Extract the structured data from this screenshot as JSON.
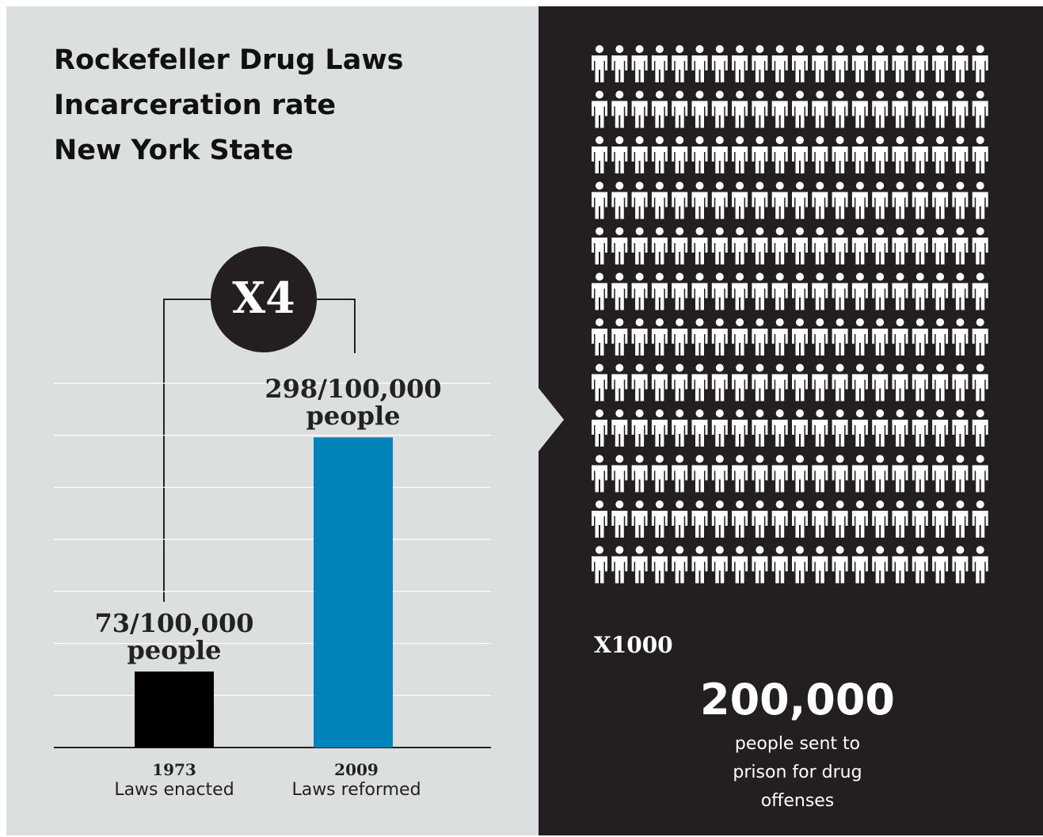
{
  "chart_data": {
    "type": "bar",
    "title_lines": [
      "Rockefeller Drug Laws",
      "Incarceration rate",
      "New York State"
    ],
    "categories": [
      "1973",
      "2009"
    ],
    "category_notes": [
      "Laws enacted",
      "Laws reformed"
    ],
    "values": [
      73,
      298
    ],
    "value_labels": [
      "73/100,000 people",
      "298/100,000 people"
    ],
    "colors": [
      "#000000",
      "#0083b9"
    ],
    "ylim": [
      0,
      350
    ],
    "yticks": [
      0,
      50,
      100,
      150,
      200,
      250,
      300,
      350
    ],
    "grid": true,
    "annotation": "X4",
    "side_panel": {
      "icon_note": "X1000",
      "total": "200,000",
      "total_note": "people sent to prison for drug offenses"
    }
  }
}
